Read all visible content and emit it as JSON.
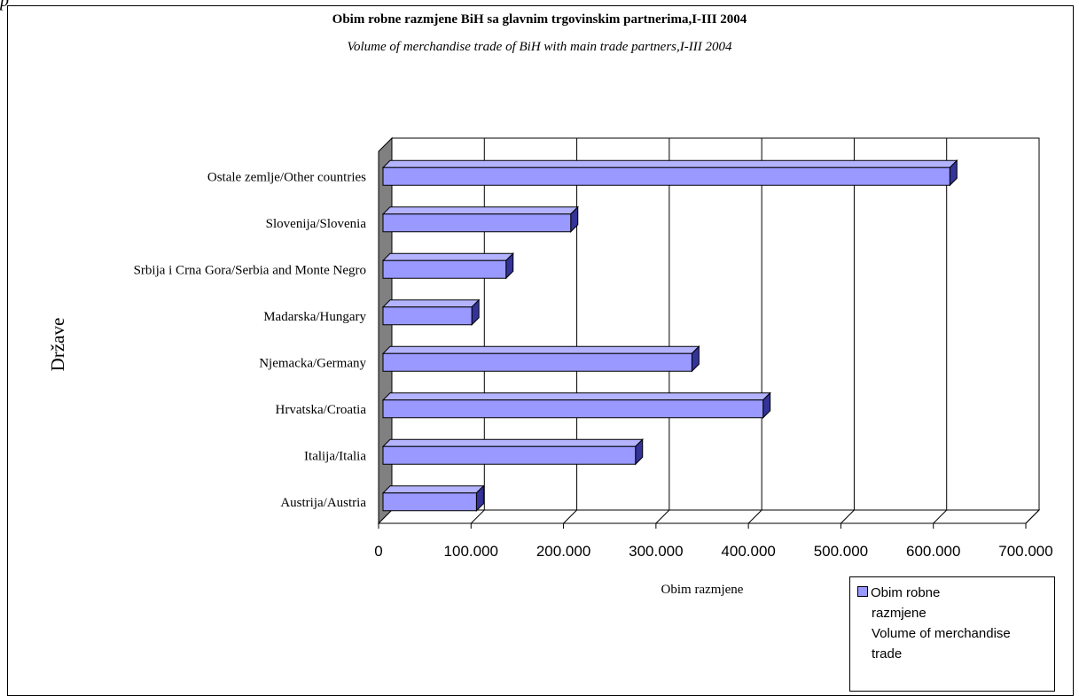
{
  "corner_text": "p",
  "title": "Obim robne razmjene BiH sa glavnim trgovinskim partnerima,I-III 2004",
  "subtitle": "Volume of merchandise  trade of BiH with main trade partners,I-III 2004",
  "legend": {
    "line1": "Obim robne",
    "line2": "razmjene",
    "line3": "Volume of merchandise",
    "line4": "trade"
  },
  "chart_data": {
    "type": "bar",
    "orientation": "horizontal",
    "style": "3d",
    "title": "Obim robne razmjene BiH sa glavnim trgovinskim partnerima,I-III 2004",
    "subtitle": "Volume of merchandise  trade of BiH with main trade partners,I-III 2004",
    "xlabel": "Obim razmjene",
    "ylabel": "Države",
    "xlim": [
      0,
      700000
    ],
    "xticks": [
      0,
      100000,
      200000,
      300000,
      400000,
      500000,
      600000,
      700000
    ],
    "xtick_labels": [
      "0",
      "100.000",
      "200.000",
      "300.000",
      "400.000",
      "500.000",
      "600.000",
      "700.000"
    ],
    "grid": true,
    "legend_position": "bottom-right",
    "categories": [
      "Ostale zemlje/Other countries",
      "Slovenija/Slovenia",
      "Srbija i Crna Gora/Serbia and Monte Negro",
      "Madarska/Hungary",
      "Njemacka/Germany",
      "Hrvatska/Croatia",
      "Italija/Italia",
      "Austrija/Austria"
    ],
    "series": [
      {
        "name": "Obim robne razmjene Volume of merchandise trade",
        "values": [
          614000,
          204000,
          134000,
          97000,
          335000,
          412000,
          274000,
          102000
        ]
      }
    ],
    "colors": {
      "bar_face": "#9999ff",
      "bar_top": "#b3b3ff",
      "bar_side": "#333399",
      "wall_side": "#808080",
      "floor": "#ffffff"
    }
  }
}
